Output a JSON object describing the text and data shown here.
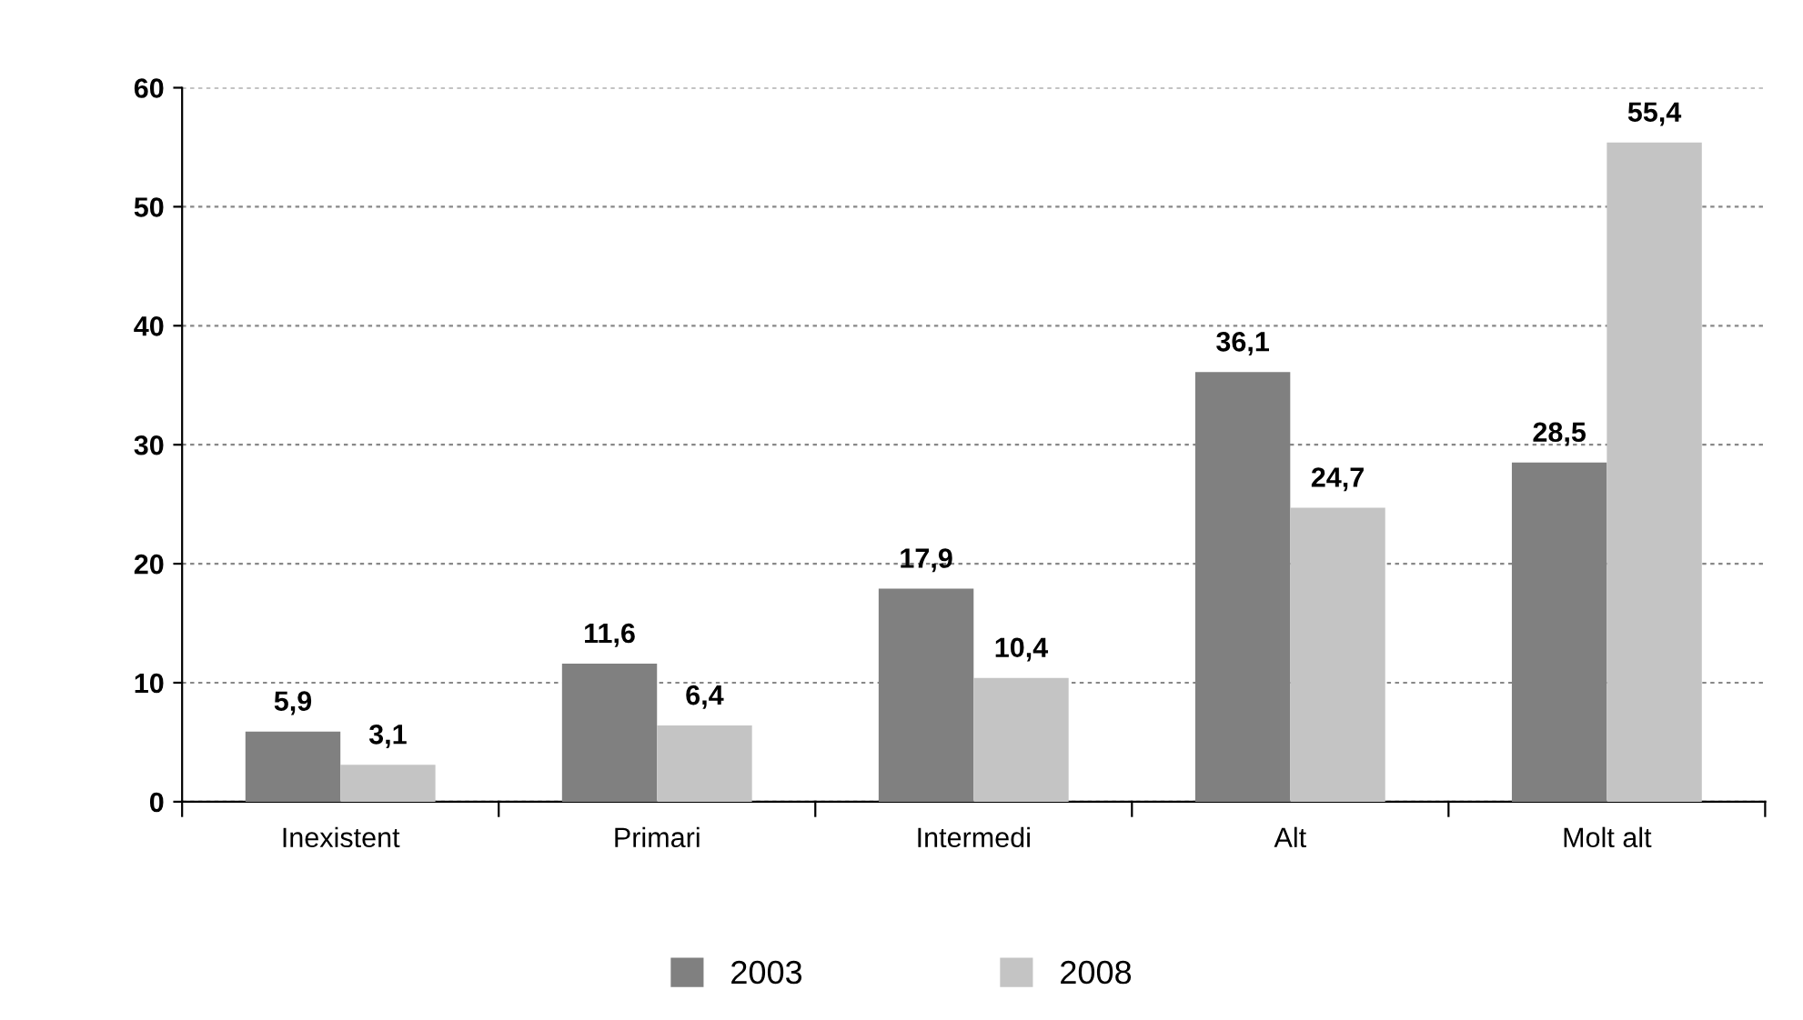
{
  "chart_data": {
    "type": "bar",
    "categories": [
      "Inexistent",
      "Primari",
      "Intermedi",
      "Alt",
      "Molt alt"
    ],
    "series": [
      {
        "name": "2003",
        "color": "#808080",
        "values": [
          5.9,
          11.6,
          17.9,
          36.1,
          28.5
        ],
        "value_labels": [
          "5,9",
          "11,6",
          "17,9",
          "36,1",
          "28,5"
        ]
      },
      {
        "name": "2008",
        "color": "#c4c4c4",
        "values": [
          3.1,
          6.4,
          10.4,
          24.7,
          55.4
        ],
        "value_labels": [
          "3,1",
          "6,4",
          "10,4",
          "24,7",
          "55,4"
        ]
      }
    ],
    "ylim": [
      0,
      60
    ],
    "yticks": [
      0,
      10,
      20,
      30,
      40,
      50,
      60
    ],
    "grid": "y",
    "legend": "bottom"
  }
}
